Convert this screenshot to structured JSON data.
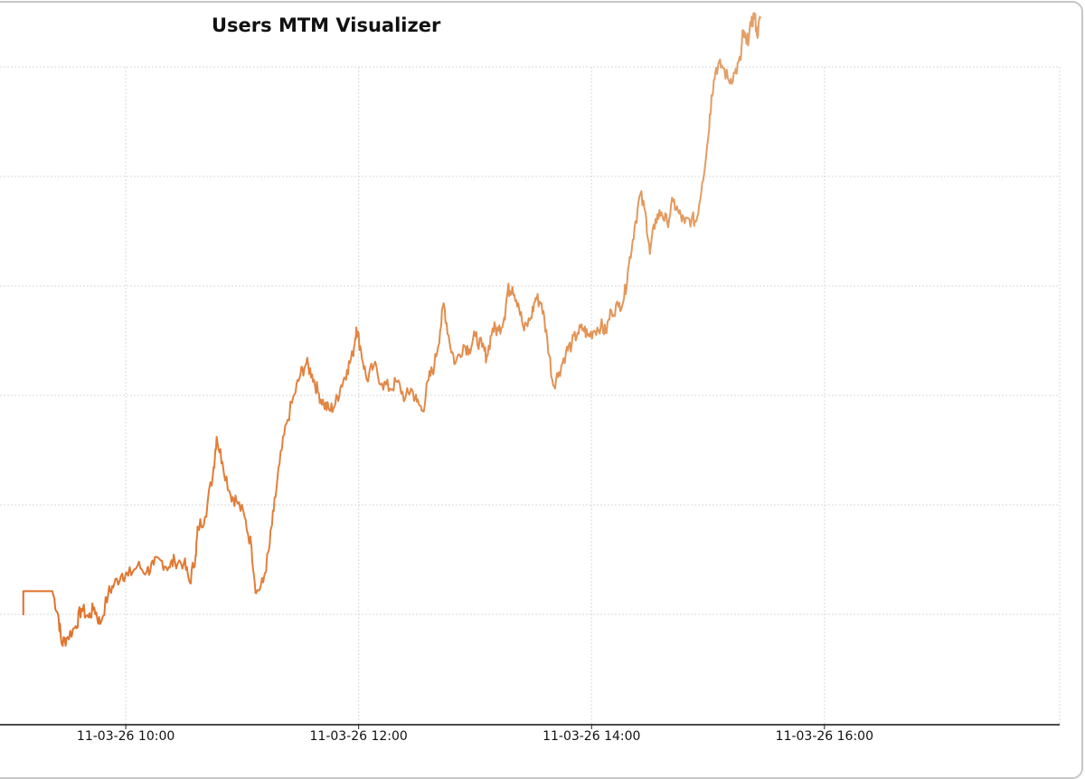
{
  "chart_data": {
    "type": "line",
    "title": "Users MTM Visualizer",
    "xlabel": "",
    "ylabel": "",
    "x_ticks": [
      {
        "label": "11-03-26 10:00",
        "hour": 10
      },
      {
        "label": "11-03-26 12:00",
        "hour": 12
      },
      {
        "label": "11-03-26 14:00",
        "hour": 14
      },
      {
        "label": "11-03-26 16:00",
        "hour": 16
      }
    ],
    "xlim_hours": [
      8.92,
      18.02
    ],
    "y_gridlines": 6,
    "grid": true,
    "legend": "none",
    "series": [
      {
        "color": "#e07028",
        "color_end": "#e4a066",
        "points": [
          [
            9.12,
            0.0
          ],
          [
            9.12,
            0.22
          ],
          [
            9.18,
            0.22
          ],
          [
            9.27,
            0.22
          ],
          [
            9.37,
            0.22
          ],
          [
            9.42,
            0.0
          ],
          [
            9.45,
            -0.26
          ],
          [
            9.5,
            -0.2
          ],
          [
            9.57,
            -0.1
          ],
          [
            9.62,
            0.06
          ],
          [
            9.68,
            -0.02
          ],
          [
            9.73,
            0.07
          ],
          [
            9.78,
            -0.08
          ],
          [
            9.85,
            0.2
          ],
          [
            9.9,
            0.28
          ],
          [
            9.97,
            0.38
          ],
          [
            10.02,
            0.36
          ],
          [
            10.1,
            0.45
          ],
          [
            10.18,
            0.4
          ],
          [
            10.24,
            0.46
          ],
          [
            10.3,
            0.5
          ],
          [
            10.37,
            0.44
          ],
          [
            10.42,
            0.5
          ],
          [
            10.5,
            0.48
          ],
          [
            10.55,
            0.3
          ],
          [
            10.6,
            0.55
          ],
          [
            10.62,
            0.8
          ],
          [
            10.68,
            0.9
          ],
          [
            10.75,
            1.3
          ],
          [
            10.78,
            1.63
          ],
          [
            10.83,
            1.4
          ],
          [
            10.9,
            1.1
          ],
          [
            10.95,
            1.05
          ],
          [
            11.02,
            0.9
          ],
          [
            11.08,
            0.62
          ],
          [
            11.12,
            0.2
          ],
          [
            11.18,
            0.3
          ],
          [
            11.23,
            0.6
          ],
          [
            11.27,
            0.95
          ],
          [
            11.32,
            1.38
          ],
          [
            11.38,
            1.75
          ],
          [
            11.45,
            2.02
          ],
          [
            11.5,
            2.2
          ],
          [
            11.55,
            2.3
          ],
          [
            11.6,
            2.2
          ],
          [
            11.65,
            2.04
          ],
          [
            11.7,
            1.93
          ],
          [
            11.75,
            1.87
          ],
          [
            11.8,
            1.93
          ],
          [
            11.85,
            2.1
          ],
          [
            11.9,
            2.24
          ],
          [
            11.95,
            2.38
          ],
          [
            11.98,
            2.63
          ],
          [
            12.02,
            2.42
          ],
          [
            12.07,
            2.15
          ],
          [
            12.13,
            2.28
          ],
          [
            12.2,
            2.12
          ],
          [
            12.27,
            2.07
          ],
          [
            12.33,
            2.13
          ],
          [
            12.4,
            1.98
          ],
          [
            12.45,
            2.07
          ],
          [
            12.5,
            1.95
          ],
          [
            12.55,
            1.87
          ],
          [
            12.6,
            2.15
          ],
          [
            12.65,
            2.28
          ],
          [
            12.7,
            2.6
          ],
          [
            12.73,
            2.85
          ],
          [
            12.78,
            2.5
          ],
          [
            12.83,
            2.3
          ],
          [
            12.9,
            2.47
          ],
          [
            12.95,
            2.43
          ],
          [
            13.0,
            2.55
          ],
          [
            13.06,
            2.45
          ],
          [
            13.1,
            2.36
          ],
          [
            13.15,
            2.62
          ],
          [
            13.2,
            2.6
          ],
          [
            13.25,
            2.72
          ],
          [
            13.28,
            2.96
          ],
          [
            13.32,
            3.0
          ],
          [
            13.37,
            2.85
          ],
          [
            13.42,
            2.6
          ],
          [
            13.48,
            2.72
          ],
          [
            13.52,
            2.9
          ],
          [
            13.57,
            2.85
          ],
          [
            13.62,
            2.52
          ],
          [
            13.67,
            2.1
          ],
          [
            13.72,
            2.22
          ],
          [
            13.78,
            2.4
          ],
          [
            13.83,
            2.48
          ],
          [
            13.88,
            2.58
          ],
          [
            13.93,
            2.62
          ],
          [
            13.97,
            2.55
          ],
          [
            14.02,
            2.6
          ],
          [
            14.08,
            2.65
          ],
          [
            14.12,
            2.58
          ],
          [
            14.17,
            2.78
          ],
          [
            14.23,
            2.82
          ],
          [
            14.28,
            2.9
          ],
          [
            14.32,
            3.2
          ],
          [
            14.37,
            3.55
          ],
          [
            14.42,
            3.85
          ],
          [
            14.47,
            3.62
          ],
          [
            14.5,
            3.3
          ],
          [
            14.55,
            3.62
          ],
          [
            14.6,
            3.68
          ],
          [
            14.65,
            3.58
          ],
          [
            14.7,
            3.78
          ],
          [
            14.75,
            3.67
          ],
          [
            14.8,
            3.58
          ],
          [
            14.86,
            3.62
          ],
          [
            14.9,
            3.6
          ],
          [
            14.95,
            3.95
          ],
          [
            15.0,
            4.35
          ],
          [
            15.03,
            4.75
          ],
          [
            15.07,
            5.0
          ],
          [
            15.12,
            5.02
          ],
          [
            15.18,
            4.88
          ],
          [
            15.23,
            4.95
          ],
          [
            15.28,
            5.07
          ],
          [
            15.3,
            5.33
          ],
          [
            15.33,
            5.22
          ],
          [
            15.37,
            5.38
          ],
          [
            15.4,
            5.5
          ],
          [
            15.42,
            5.3
          ],
          [
            15.45,
            5.45
          ]
        ]
      }
    ]
  }
}
